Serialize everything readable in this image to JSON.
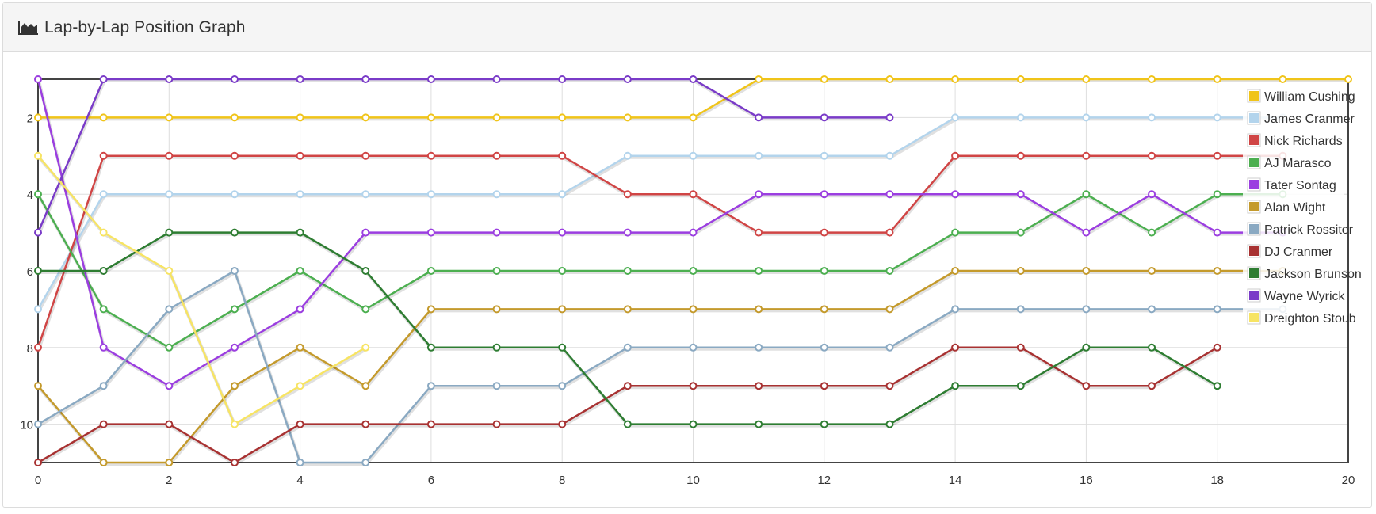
{
  "panel": {
    "title": "Lap-by-Lap Position Graph",
    "icon": "area-chart-icon"
  },
  "chart_data": {
    "type": "line",
    "title": "Lap-by-Lap Position Graph",
    "xlabel": "",
    "ylabel": "",
    "xlim": [
      0,
      20
    ],
    "ylim": [
      1,
      11
    ],
    "y_inverted": true,
    "x_ticks": [
      0,
      2,
      4,
      6,
      8,
      10,
      12,
      14,
      16,
      18,
      20
    ],
    "y_ticks": [
      2,
      4,
      6,
      8,
      10
    ],
    "grid": true,
    "legend_position": "top-right",
    "series": [
      {
        "name": "William Cushing",
        "color": "#f0c419",
        "x_start": 0,
        "values": [
          2,
          2,
          2,
          2,
          2,
          2,
          2,
          2,
          2,
          2,
          2,
          1,
          1,
          1,
          1,
          1,
          1,
          1,
          1,
          1,
          1
        ]
      },
      {
        "name": "James Cranmer",
        "color": "#b3d4ec",
        "x_start": 0,
        "values": [
          7,
          4,
          4,
          4,
          4,
          4,
          4,
          4,
          4,
          3,
          3,
          3,
          3,
          3,
          2,
          2,
          2,
          2,
          2,
          2
        ]
      },
      {
        "name": "Nick Richards",
        "color": "#d04545",
        "x_start": 0,
        "values": [
          8,
          3,
          3,
          3,
          3,
          3,
          3,
          3,
          3,
          4,
          4,
          5,
          5,
          5,
          3,
          3,
          3,
          3,
          3,
          3
        ]
      },
      {
        "name": "AJ Marasco",
        "color": "#4caf50",
        "x_start": 0,
        "values": [
          4,
          7,
          8,
          7,
          6,
          7,
          6,
          6,
          6,
          6,
          6,
          6,
          6,
          6,
          5,
          5,
          4,
          5,
          4,
          4
        ]
      },
      {
        "name": "Tater Sontag",
        "color": "#9b3ee0",
        "x_start": 0,
        "values": [
          1,
          8,
          9,
          8,
          7,
          5,
          5,
          5,
          5,
          5,
          5,
          4,
          4,
          4,
          4,
          4,
          5,
          4,
          5,
          5
        ]
      },
      {
        "name": "Alan Wight",
        "color": "#c49a2c",
        "x_start": 0,
        "values": [
          9,
          11,
          11,
          9,
          8,
          9,
          7,
          7,
          7,
          7,
          7,
          7,
          7,
          7,
          6,
          6,
          6,
          6,
          6,
          6
        ]
      },
      {
        "name": "Patrick Rossiter",
        "color": "#8aa9c2",
        "x_start": 0,
        "values": [
          10,
          9,
          7,
          6,
          11,
          11,
          9,
          9,
          9,
          8,
          8,
          8,
          8,
          8,
          7,
          7,
          7,
          7,
          7,
          7
        ]
      },
      {
        "name": "DJ Cranmer",
        "color": "#a83232",
        "x_start": 0,
        "values": [
          11,
          10,
          10,
          11,
          10,
          10,
          10,
          10,
          10,
          9,
          9,
          9,
          9,
          9,
          8,
          8,
          9,
          9,
          8
        ]
      },
      {
        "name": "Jackson Brunson",
        "color": "#2e7d32",
        "x_start": 0,
        "values": [
          6,
          6,
          5,
          5,
          5,
          6,
          8,
          8,
          8,
          10,
          10,
          10,
          10,
          10,
          9,
          9,
          8,
          8,
          9
        ]
      },
      {
        "name": "Wayne Wyrick",
        "color": "#7a3bc8",
        "x_start": 0,
        "values": [
          5,
          1,
          1,
          1,
          1,
          1,
          1,
          1,
          1,
          1,
          1,
          2,
          2,
          2
        ]
      },
      {
        "name": "Dreighton Stoub",
        "color": "#f7e463",
        "x_start": 0,
        "values": [
          3,
          5,
          6,
          10,
          9,
          8
        ]
      }
    ]
  }
}
